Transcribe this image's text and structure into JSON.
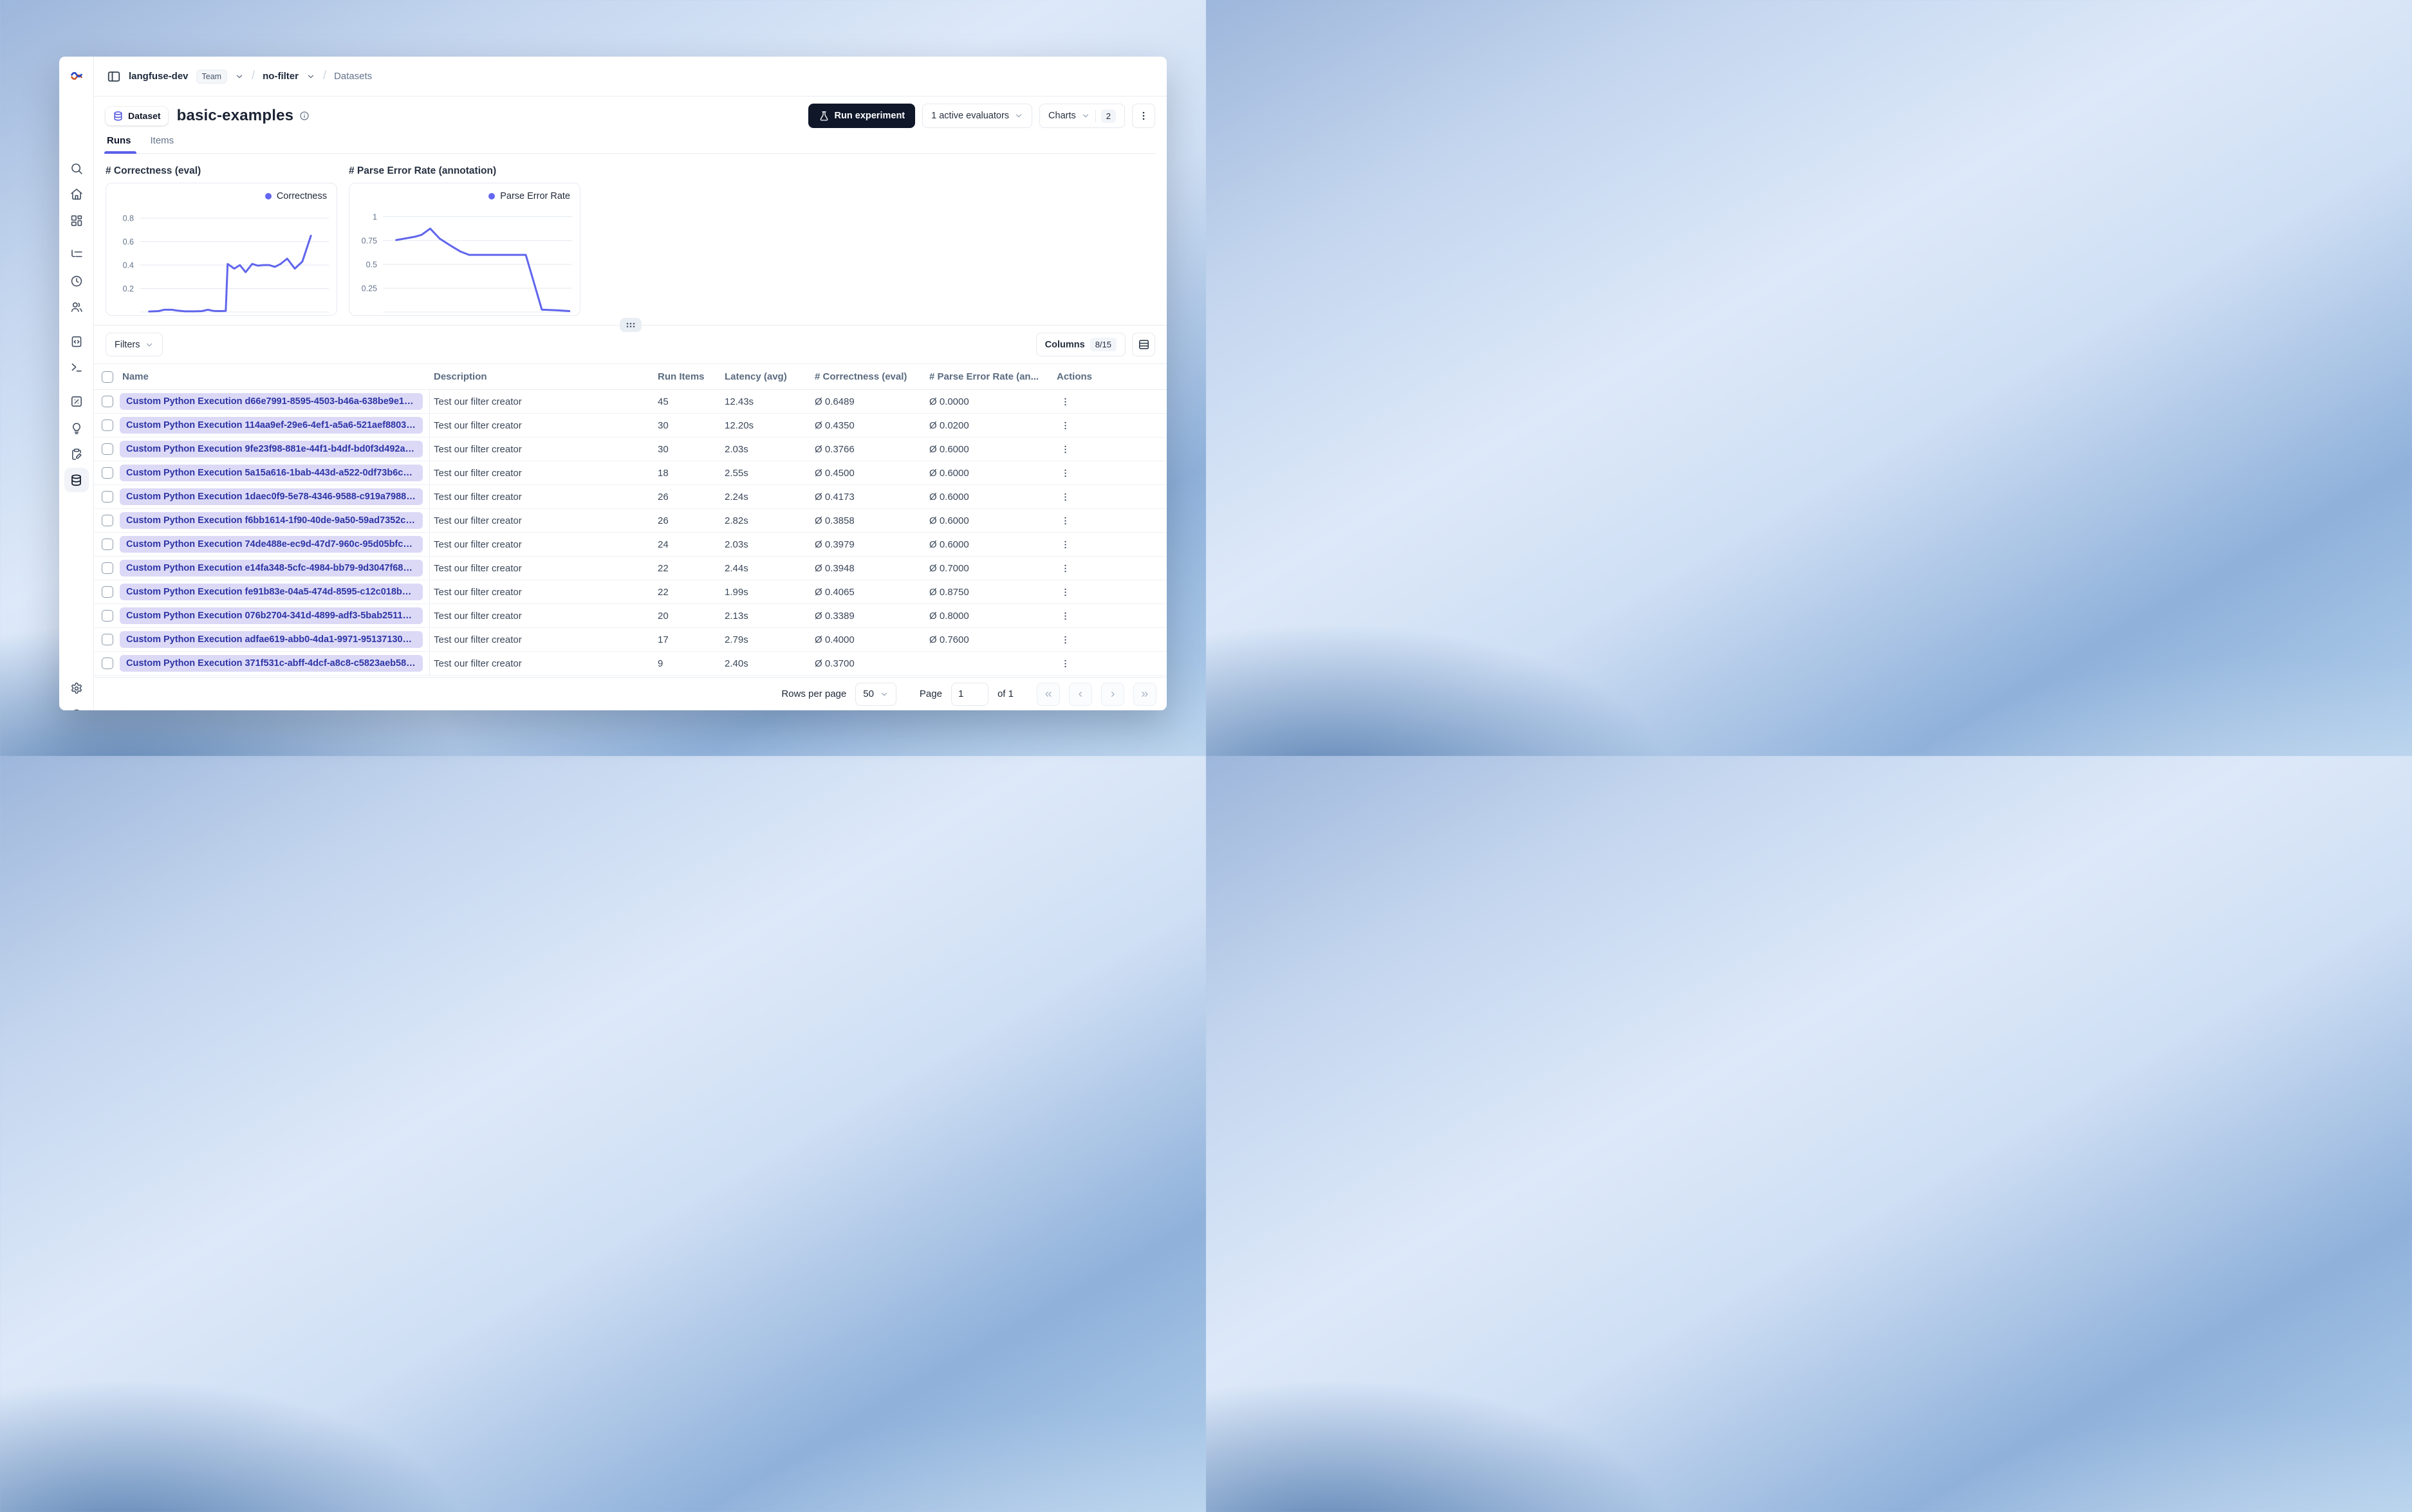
{
  "breadcrumb": {
    "org": "langfuse-dev",
    "org_badge": "Team",
    "project": "no-filter",
    "section": "Datasets"
  },
  "header": {
    "dataset_badge": "Dataset",
    "title": "basic-examples",
    "run_experiment_label": "Run experiment",
    "evaluators_label": "1 active evaluators",
    "charts_label": "Charts",
    "charts_count": "2"
  },
  "tabs": [
    {
      "label": "Runs",
      "active": true
    },
    {
      "label": "Items",
      "active": false
    }
  ],
  "chart_data": [
    {
      "type": "line",
      "title": "# Correctness (eval)",
      "legend": "Correctness",
      "yticks": [
        0.2,
        0.4,
        0.6,
        0.8
      ],
      "ylim": [
        0,
        0.91
      ],
      "grid": true,
      "legend_position": "top-right",
      "line_color": "#6065ec",
      "points": [
        [
          0.05,
          0.005
        ],
        [
          0.1,
          0.008
        ],
        [
          0.13,
          0.02
        ],
        [
          0.17,
          0.02
        ],
        [
          0.2,
          0.012
        ],
        [
          0.24,
          0.006
        ],
        [
          0.29,
          0.006
        ],
        [
          0.33,
          0.008
        ],
        [
          0.36,
          0.02
        ],
        [
          0.39,
          0.01
        ],
        [
          0.42,
          0.008
        ],
        [
          0.455,
          0.01
        ],
        [
          0.465,
          0.41
        ],
        [
          0.5,
          0.37
        ],
        [
          0.53,
          0.4
        ],
        [
          0.56,
          0.34
        ],
        [
          0.595,
          0.41
        ],
        [
          0.625,
          0.395
        ],
        [
          0.655,
          0.4
        ],
        [
          0.685,
          0.4
        ],
        [
          0.715,
          0.385
        ],
        [
          0.745,
          0.41
        ],
        [
          0.78,
          0.455
        ],
        [
          0.82,
          0.37
        ],
        [
          0.86,
          0.43
        ],
        [
          0.905,
          0.65
        ]
      ]
    },
    {
      "type": "line",
      "title": "# Parse Error Rate (annotation)",
      "legend": "Parse Error Rate",
      "yticks": [
        0.25,
        0.5,
        0.75,
        1
      ],
      "ylim": [
        0,
        1.12
      ],
      "grid": true,
      "legend_position": "top-right",
      "line_color": "#6065ec",
      "points": [
        [
          0.07,
          0.755
        ],
        [
          0.17,
          0.79
        ],
        [
          0.205,
          0.81
        ],
        [
          0.25,
          0.875
        ],
        [
          0.3,
          0.77
        ],
        [
          0.355,
          0.7
        ],
        [
          0.41,
          0.635
        ],
        [
          0.455,
          0.6
        ],
        [
          0.55,
          0.6
        ],
        [
          0.65,
          0.6
        ],
        [
          0.755,
          0.6
        ],
        [
          0.84,
          0.025
        ],
        [
          0.92,
          0.018
        ],
        [
          0.985,
          0.01
        ]
      ]
    }
  ],
  "toolbar": {
    "filters_label": "Filters",
    "columns_label": "Columns",
    "columns_count": "8/15"
  },
  "table": {
    "columns": [
      "Name",
      "Description",
      "Run Items",
      "Latency (avg)",
      "# Correctness (eval)",
      "# Parse Error Rate (an...",
      "Actions"
    ],
    "rows": [
      {
        "name": "Custom Python Execution d66e7991-8595-4503-b46a-638be9e1d5b...",
        "description": "Test our filter creator",
        "run_items": "45",
        "latency": "12.43s",
        "correctness": "Ø 0.6489",
        "parse_error_rate": "Ø 0.0000"
      },
      {
        "name": "Custom Python Execution 114aa9ef-29e6-4ef1-a5a6-521aef88039a - ...",
        "description": "Test our filter creator",
        "run_items": "30",
        "latency": "12.20s",
        "correctness": "Ø 0.4350",
        "parse_error_rate": "Ø 0.0200"
      },
      {
        "name": "Custom Python Execution 9fe23f98-881e-44f1-b4df-bd0f3d492a2c - ...",
        "description": "Test our filter creator",
        "run_items": "30",
        "latency": "2.03s",
        "correctness": "Ø 0.3766",
        "parse_error_rate": "Ø 0.6000"
      },
      {
        "name": "Custom Python Execution 5a15a616-1bab-443d-a522-0df73b6c9af9 -...",
        "description": "Test our filter creator",
        "run_items": "18",
        "latency": "2.55s",
        "correctness": "Ø 0.4500",
        "parse_error_rate": "Ø 0.6000"
      },
      {
        "name": "Custom Python Execution 1daec0f9-5e78-4346-9588-c919a7988948...",
        "description": "Test our filter creator",
        "run_items": "26",
        "latency": "2.24s",
        "correctness": "Ø 0.4173",
        "parse_error_rate": "Ø 0.6000"
      },
      {
        "name": "Custom Python Execution f6bb1614-1f90-40de-9a50-59ad7352c068 ...",
        "description": "Test our filter creator",
        "run_items": "26",
        "latency": "2.82s",
        "correctness": "Ø 0.3858",
        "parse_error_rate": "Ø 0.6000"
      },
      {
        "name": "Custom Python Execution 74de488e-ec9d-47d7-960c-95d05bfcaa6a ...",
        "description": "Test our filter creator",
        "run_items": "24",
        "latency": "2.03s",
        "correctness": "Ø 0.3979",
        "parse_error_rate": "Ø 0.6000"
      },
      {
        "name": "Custom Python Execution e14fa348-5cfc-4984-bb79-9d3047f68cfa -...",
        "description": "Test our filter creator",
        "run_items": "22",
        "latency": "2.44s",
        "correctness": "Ø 0.3948",
        "parse_error_rate": "Ø 0.7000"
      },
      {
        "name": "Custom Python Execution fe91b83e-04a5-474d-8595-c12c018b7b5c ...",
        "description": "Test our filter creator",
        "run_items": "22",
        "latency": "1.99s",
        "correctness": "Ø 0.4065",
        "parse_error_rate": "Ø 0.8750"
      },
      {
        "name": "Custom Python Execution 076b2704-341d-4899-adf3-5bab2511645e ...",
        "description": "Test our filter creator",
        "run_items": "20",
        "latency": "2.13s",
        "correctness": "Ø 0.3389",
        "parse_error_rate": "Ø 0.8000"
      },
      {
        "name": "Custom Python Execution adfae619-abb0-4da1-9971-951371307128 - ...",
        "description": "Test our filter creator",
        "run_items": "17",
        "latency": "2.79s",
        "correctness": "Ø 0.4000",
        "parse_error_rate": "Ø 0.7600"
      },
      {
        "name": "Custom Python Execution 371f531c-abff-4dcf-a8c8-c5823aeb5833 - ...",
        "description": "Test our filter creator",
        "run_items": "9",
        "latency": "2.40s",
        "correctness": "Ø 0.3700",
        "parse_error_rate": ""
      }
    ]
  },
  "pagination": {
    "rows_per_page_label": "Rows per page",
    "rows_per_page": "50",
    "page_label": "Page",
    "page_value": "1",
    "of_label": "of 1"
  },
  "sidebar": {
    "icons": [
      "langfuse-logo",
      "search",
      "home",
      "dashboards",
      "tracing",
      "sessions",
      "users",
      "prompts",
      "playground",
      "scores",
      "evaluators",
      "annotation",
      "datasets",
      "settings",
      "support",
      "user-avatar"
    ],
    "active_item": "datasets"
  },
  "colors": {
    "accent": "#5b5fe8",
    "chart_line": "#6065ec",
    "name_pill_bg": "#dcd9f7",
    "name_pill_text": "#2d35a5",
    "dark_button": "#0f1729",
    "legend_dot": "#6366f1"
  }
}
